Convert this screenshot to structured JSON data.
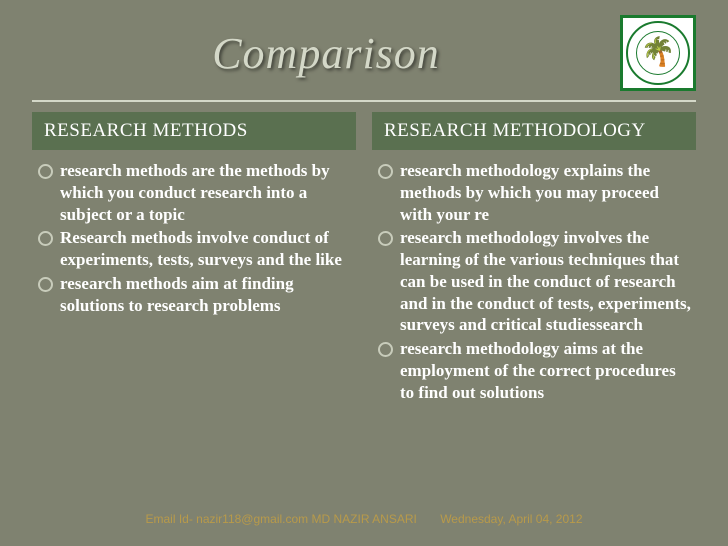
{
  "title": "Comparison",
  "logo_glyph": "🌴",
  "left": {
    "header": "RESEARCH METHODS",
    "items": [
      "research methods are the methods by which you conduct research into a subject or a topic",
      "Research methods involve conduct of experiments, tests, surveys and the like",
      "research methods aim at finding solutions to research problems"
    ]
  },
  "right": {
    "header": "RESEARCH METHODOLOGY",
    "items": [
      "research methodology explains the methods by which you may proceed with your re",
      "research methodology involves the learning of the various techniques that can be used in the conduct of research and in the conduct of tests, experiments, surveys and critical studiessearch",
      "research methodology aims at the employment of the correct procedures to find out solutions"
    ]
  },
  "footer": {
    "email": "Email Id- nazir118@gmail.com MD NAZIR ANSARI",
    "date": "Wednesday, April 04, 2012"
  },
  "colors": {
    "bg": "#7f8270",
    "header_bg": "#5a7050",
    "title_color": "#d4d8c8",
    "footer_color": "#b89a4a",
    "text_color": "#ffffff",
    "logo_border": "#1a7a2e"
  }
}
